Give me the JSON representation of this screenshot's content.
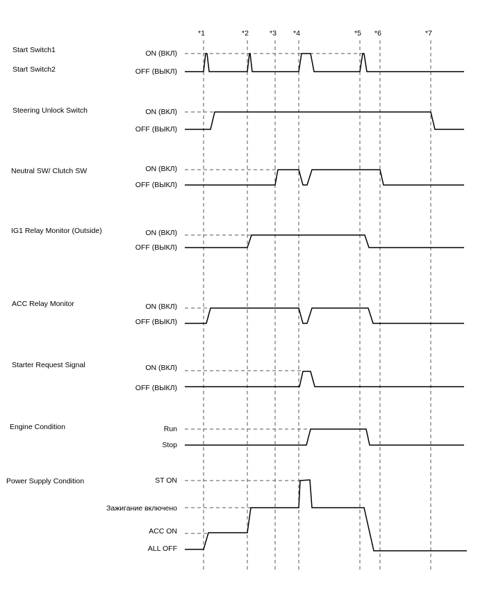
{
  "markers": [
    "*1",
    "*2",
    "*3",
    "*4",
    "*5",
    "*6",
    "*7"
  ],
  "signals": [
    {
      "names": [
        "Start Switch1",
        "Start Switch2"
      ],
      "levels": [
        "ON (ВКЛ)",
        "OFF (ВЫКЛ)"
      ]
    },
    {
      "names": [
        "Steering Unlock Switch"
      ],
      "levels": [
        "ON (ВКЛ)",
        "OFF (ВЫКЛ)"
      ]
    },
    {
      "names": [
        "Neutral SW/ Clutch SW"
      ],
      "levels": [
        "ON (ВКЛ)",
        "OFF (ВЫКЛ)"
      ]
    },
    {
      "names": [
        "IG1 Relay Monitor (Outside)"
      ],
      "levels": [
        "ON (ВКЛ)",
        "OFF (ВЫКЛ)"
      ]
    },
    {
      "names": [
        "ACC Relay Monitor"
      ],
      "levels": [
        "ON (ВКЛ)",
        "OFF (ВЫКЛ)"
      ]
    },
    {
      "names": [
        "Starter Request Signal"
      ],
      "levels": [
        "ON (ВКЛ)",
        "OFF (ВЫКЛ)"
      ]
    },
    {
      "names": [
        "Engine Condition"
      ],
      "levels": [
        "Run",
        "Stop"
      ]
    },
    {
      "names": [
        "Power Supply Condition"
      ],
      "levels": [
        "ST ON",
        "Зажигание включено",
        "ACC ON",
        "ALL OFF"
      ]
    }
  ]
}
